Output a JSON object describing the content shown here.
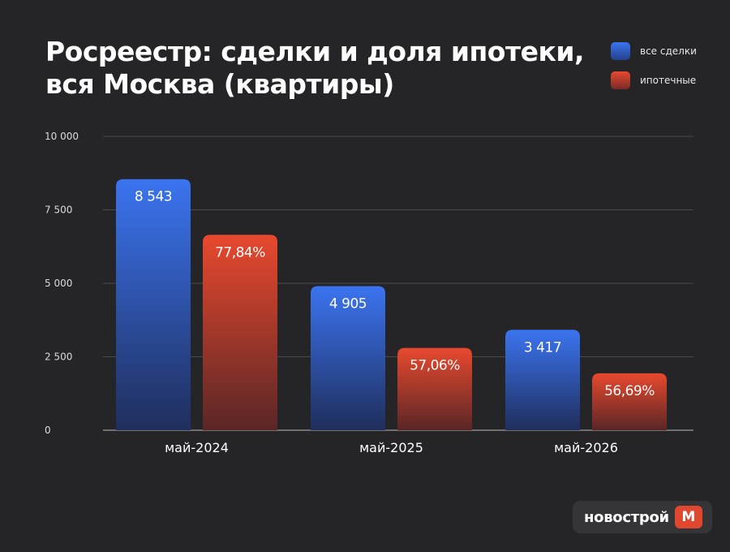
{
  "chart_data": {
    "type": "bar",
    "title_lines": [
      "Росреестр: сделки и доля ипотеки,",
      "вся Москва (квартиры)"
    ],
    "categories": [
      "май-2024",
      "май-2025",
      "май-2026"
    ],
    "series": [
      {
        "name": "все сделки",
        "values": [
          8543,
          4905,
          3417
        ],
        "labels": [
          "8 543",
          "4 905",
          "3 417"
        ],
        "color": "#3b74f0"
      },
      {
        "name": "ипотечные",
        "values": [
          6650,
          2799,
          1937
        ],
        "labels": [
          "77,84%",
          "57,06%",
          "56,69%"
        ],
        "color": "#e8492e"
      }
    ],
    "ylim": [
      0,
      10000
    ],
    "yticks": [
      0,
      2500,
      5000,
      7500,
      10000
    ],
    "ytick_labels": [
      "0",
      "2 500",
      "5 000",
      "7 500",
      "10 000"
    ],
    "grid": true,
    "legend_position": "top-right"
  },
  "logo": {
    "text": "новострой",
    "badge": "М"
  }
}
